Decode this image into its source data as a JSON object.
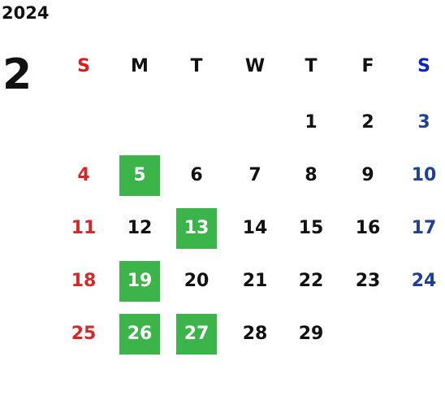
{
  "year": "2024",
  "month": "2",
  "weekdays": [
    "S",
    "M",
    "T",
    "W",
    "T",
    "F",
    "S"
  ],
  "weeks": [
    [
      {
        "day": null
      },
      {
        "day": null
      },
      {
        "day": null
      },
      {
        "day": null
      },
      {
        "day": 1
      },
      {
        "day": 2
      },
      {
        "day": 3
      }
    ],
    [
      {
        "day": 4
      },
      {
        "day": 5,
        "highlight": true
      },
      {
        "day": 6
      },
      {
        "day": 7
      },
      {
        "day": 8
      },
      {
        "day": 9
      },
      {
        "day": 10
      }
    ],
    [
      {
        "day": 11
      },
      {
        "day": 12
      },
      {
        "day": 13,
        "highlight": true
      },
      {
        "day": 14
      },
      {
        "day": 15
      },
      {
        "day": 16
      },
      {
        "day": 17
      }
    ],
    [
      {
        "day": 18
      },
      {
        "day": 19,
        "highlight": true
      },
      {
        "day": 20
      },
      {
        "day": 21
      },
      {
        "day": 22
      },
      {
        "day": 23
      },
      {
        "day": 24
      }
    ],
    [
      {
        "day": 25
      },
      {
        "day": 26,
        "highlight": true
      },
      {
        "day": 27,
        "highlight": true
      },
      {
        "day": 28
      },
      {
        "day": 29
      },
      {
        "day": null
      },
      {
        "day": null
      }
    ]
  ]
}
